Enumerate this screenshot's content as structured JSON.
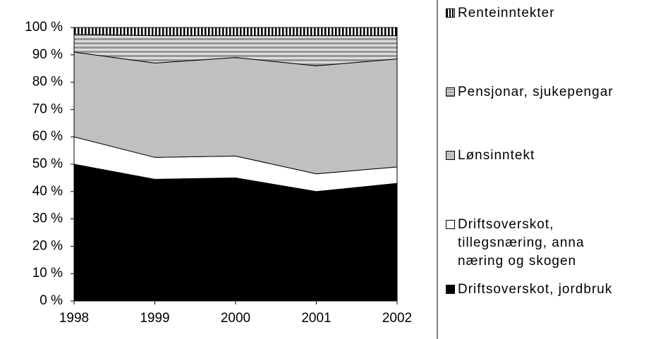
{
  "chart_data": {
    "type": "stacked-area",
    "categories": [
      "1998",
      "1999",
      "2000",
      "2001",
      "2002"
    ],
    "series": [
      {
        "name": "Driftsoverskot, jordbruk",
        "color": "#000000",
        "values": [
          50,
          44.5,
          45,
          40,
          43
        ]
      },
      {
        "name": "Driftsoverskot, tillegsnæring, anna næring og skogen",
        "color": "#ffffff",
        "values": [
          10,
          8,
          8,
          6.5,
          6
        ]
      },
      {
        "name": "Lønsinntekt",
        "color": "#c0c0c0",
        "values": [
          31,
          34.5,
          36,
          39.5,
          39.5
        ]
      },
      {
        "name": "Pensjonar, sjukepengar",
        "color": "#969696",
        "pattern": "horizontal-stripes",
        "values": [
          6.5,
          10,
          8,
          11,
          8.5
        ]
      },
      {
        "name": "Renteinntekter",
        "color": "#000000",
        "pattern": "vertical-stripes",
        "values": [
          2.5,
          3,
          3,
          3,
          3
        ]
      }
    ],
    "ylim": [
      0,
      100
    ],
    "yticks": [
      {
        "value": 0,
        "label": "0 %"
      },
      {
        "value": 10,
        "label": "10 %"
      },
      {
        "value": 20,
        "label": "20 %"
      },
      {
        "value": 30,
        "label": "30 %"
      },
      {
        "value": 40,
        "label": "40 %"
      },
      {
        "value": 50,
        "label": "50 %"
      },
      {
        "value": 60,
        "label": "60 %"
      },
      {
        "value": 70,
        "label": "70 %"
      },
      {
        "value": 80,
        "label": "80 %"
      },
      {
        "value": 90,
        "label": "90 %"
      },
      {
        "value": 100,
        "label": "100 %"
      }
    ],
    "legend": "right"
  }
}
